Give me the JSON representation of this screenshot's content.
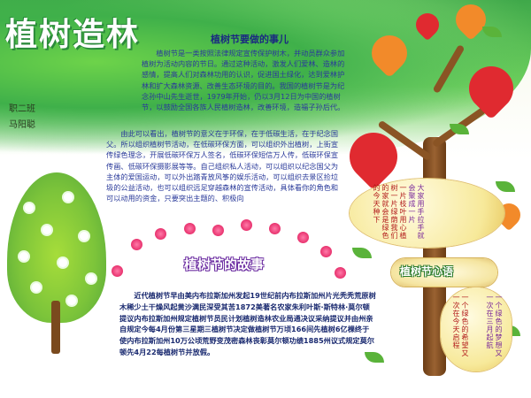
{
  "poster": {
    "title": "植树造林",
    "class_label": "职二班",
    "author": "马阳聪",
    "section_heading": "植树节要做的事儿",
    "intro_paragraph": "植树节是一类按照法律规定宣传保护树木，并动员群众参加植树为活动内容的节日。通过这种活动，激发人们爱林、造林的感情，提高人们对森林功用的认识，促进国土绿化，达到爱林护林和扩大森林资源、改善生态环境的目的。我国的植树节是为纪念孙中山先生逝世，1979年开始，仍以3月12日为中国的植树节，以鼓励全国各族人民植树造林，改善环境，造福子孙后代。",
    "second_paragraph": "由此可以看出，植树节的意义在于环保，在于低碳生活，在于纪念国父。所以组织植树节活动，在低碳环保方面，可以组织外出植树，上街宣传绿色理念，开展低碳环保万人签名，低碳环保短信万人传，低碳环保宣传画、低碳环保摄影展等等。自己组织私人活动，可以组织以纪念国父为主体的爱国运动，可以外出踏青放风筝的娱乐活动，可以组织去景区捡垃圾的公益活动，也可以组织远足穿越森林的宣传活动，具体看你的角色和可以动用的资金，只要突出主题的、积极向",
    "story_heading": "植树节的故事",
    "story_paragraph": "近代植树节早由美内布拉斯加州发起19世纪前内布拉斯加州片光秃秃荒原树木稀少土干燥风起黄沙满民深受其苦1872美著名农家朱利叶斯·斯特林·莫尔顿提议内布拉斯加州规定植树节员民计划植树造林农业局通决议采纳提议并由州亲自规定今每4月份第三星期三植树节决定做植树节万顷166间先植树6亿棵终于使内布拉斯加州10万公顷荒野变茂密森林丧彰莫尔顿功绩1885州议式规定莫尔顿先4月22每植树节并放假。",
    "right_badge": "植树节心语",
    "upper_bubble_lines": [
      "大家",
      "用手",
      "拉手",
      "就会",
      "聚成",
      "一片"
    ],
    "upper_bubble_lines_red": [
      "一片",
      "枝叶",
      "用心",
      "植树",
      "一片",
      "绿荫",
      "我们",
      "的家",
      "就会",
      "是绿",
      "色的",
      "今天",
      "种下"
    ],
    "lower_bubble_lines": [
      "一个",
      "绿色",
      "的梦",
      "想又",
      "一次",
      "在三",
      "月起",
      "航"
    ],
    "lower_bubble_lines_2": [
      "一个",
      "绿色",
      "的希",
      "望又",
      "一次",
      "在今",
      "天启",
      "程"
    ]
  },
  "colors": {
    "green_band": "#3fb04a",
    "title_text": "#ffffff",
    "body_text": "#2a3a9a",
    "heart_red": "#e02a30",
    "heart_orange": "#f28a2a",
    "blossom_pink": "#e8326e"
  },
  "icons": {
    "hearts": "heart-icon",
    "leaves": "leaf-icon",
    "flowers": "flower-icon",
    "blossoms": "blossom-icon"
  }
}
